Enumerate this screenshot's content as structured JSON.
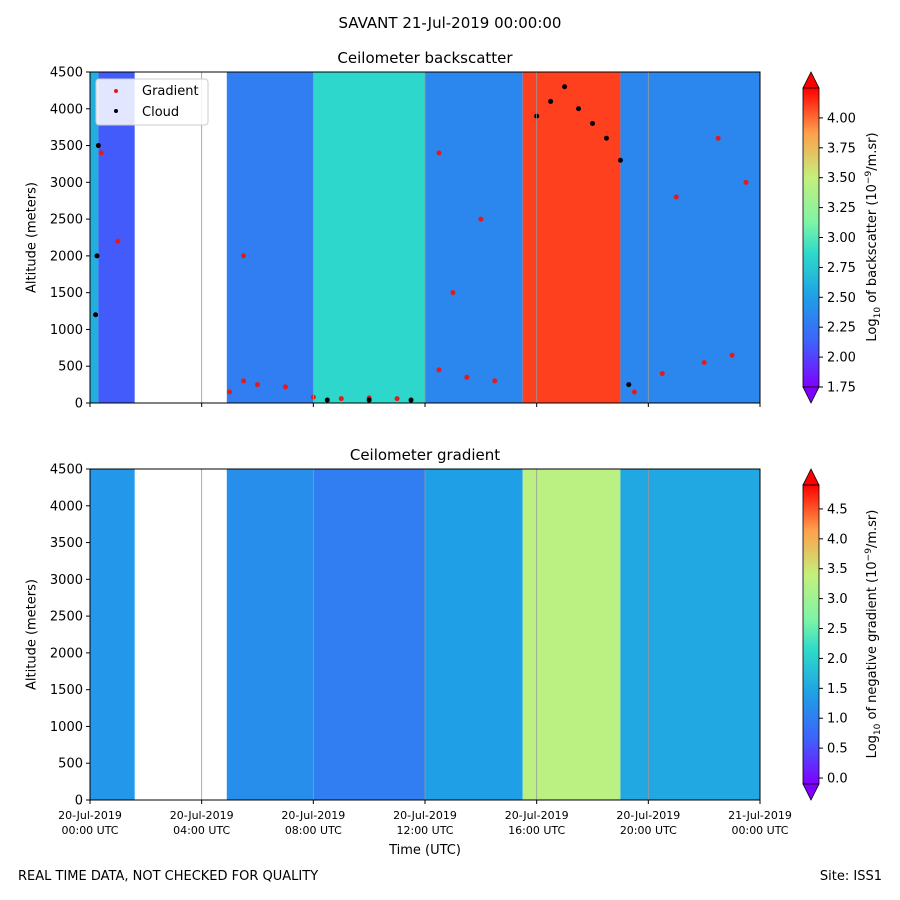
{
  "header": {
    "suptitle": "SAVANT 21-Jul-2019 00:00:00",
    "footer_left": "REAL TIME DATA, NOT CHECKED FOR QUALITY",
    "footer_right": "Site: ISS1"
  },
  "chart_data": [
    {
      "type": "heatmap",
      "title": "Ceilometer backscatter",
      "xlabel": "",
      "ylabel": "Altitude (meters)",
      "ylim": [
        0,
        4500
      ],
      "yticks": [
        0,
        500,
        1000,
        1500,
        2000,
        2500,
        3000,
        3500,
        4000,
        4500
      ],
      "ytick_labels": [
        "0",
        "500",
        "1000",
        "1500",
        "2000",
        "2500",
        "3000",
        "3500",
        "4000",
        "4500"
      ],
      "xlim_hours": [
        0,
        24
      ],
      "xticks_hours": [
        0,
        4,
        8,
        12,
        16,
        20,
        24
      ],
      "legend": [
        "Gradient",
        "Cloud"
      ],
      "legend_colors": [
        "#e41a1c",
        "#000000"
      ],
      "legend_position": "top-left",
      "colorbar": {
        "label": "Log10 of backscatter (10^-9/m.sr)",
        "label_main": "Log",
        "label_sub": "10",
        "label_rest": " of backscatter (10",
        "label_exp": "−9",
        "label_end": "/m.sr)",
        "range": [
          1.75,
          4.25
        ],
        "ticks": [
          1.75,
          2.0,
          2.25,
          2.5,
          2.75,
          3.0,
          3.25,
          3.5,
          3.75,
          4.0
        ],
        "tick_labels": [
          "1.75",
          "2.00",
          "2.25",
          "2.50",
          "2.75",
          "3.00",
          "3.25",
          "3.50",
          "3.75",
          "4.00"
        ]
      },
      "data_gaps_hours": [
        [
          1.6,
          4.9
        ],
        [
          15.9,
          15.95
        ]
      ],
      "bands": [
        {
          "start_hour": 0.0,
          "end_hour": 0.3,
          "value": 2.6
        },
        {
          "start_hour": 0.3,
          "end_hour": 1.6,
          "value": 2.1
        },
        {
          "start_hour": 4.9,
          "end_hour": 8.0,
          "value": 2.3
        },
        {
          "start_hour": 8.0,
          "end_hour": 12.0,
          "value": 2.85
        },
        {
          "start_hour": 12.0,
          "end_hour": 15.5,
          "value": 2.35
        },
        {
          "start_hour": 15.5,
          "end_hour": 19.0,
          "value": 4.1
        },
        {
          "start_hour": 19.0,
          "end_hour": 24.0,
          "value": 2.35
        }
      ],
      "gradient_points": [
        {
          "x": 5.0,
          "y": 150
        },
        {
          "x": 5.5,
          "y": 300
        },
        {
          "x": 6.0,
          "y": 250
        },
        {
          "x": 7.0,
          "y": 220
        },
        {
          "x": 8.0,
          "y": 80
        },
        {
          "x": 9.0,
          "y": 60
        },
        {
          "x": 10.0,
          "y": 70
        },
        {
          "x": 11.0,
          "y": 60
        },
        {
          "x": 12.5,
          "y": 450
        },
        {
          "x": 13.5,
          "y": 350
        },
        {
          "x": 14.5,
          "y": 300
        },
        {
          "x": 19.5,
          "y": 150
        },
        {
          "x": 20.5,
          "y": 400
        },
        {
          "x": 22.0,
          "y": 550
        },
        {
          "x": 23.0,
          "y": 650
        },
        {
          "x": 5.5,
          "y": 2000
        },
        {
          "x": 0.4,
          "y": 3400
        },
        {
          "x": 1.0,
          "y": 2200
        },
        {
          "x": 12.5,
          "y": 3400
        },
        {
          "x": 14.0,
          "y": 2500
        },
        {
          "x": 22.5,
          "y": 3600
        },
        {
          "x": 23.5,
          "y": 3000
        },
        {
          "x": 13.0,
          "y": 1500
        },
        {
          "x": 21.0,
          "y": 2800
        }
      ],
      "cloud_points": [
        {
          "x": 0.3,
          "y": 3500
        },
        {
          "x": 0.25,
          "y": 2000
        },
        {
          "x": 0.2,
          "y": 1200
        },
        {
          "x": 16.0,
          "y": 3900
        },
        {
          "x": 16.5,
          "y": 4100
        },
        {
          "x": 17.0,
          "y": 4300
        },
        {
          "x": 17.5,
          "y": 4000
        },
        {
          "x": 18.0,
          "y": 3800
        },
        {
          "x": 18.5,
          "y": 3600
        },
        {
          "x": 19.0,
          "y": 3300
        },
        {
          "x": 19.3,
          "y": 250
        },
        {
          "x": 8.5,
          "y": 40
        },
        {
          "x": 10.0,
          "y": 40
        },
        {
          "x": 11.5,
          "y": 40
        }
      ]
    },
    {
      "type": "heatmap",
      "title": "Ceilometer gradient",
      "xlabel": "Time (UTC)",
      "ylabel": "Altitude (meters)",
      "ylim": [
        0,
        4500
      ],
      "yticks": [
        0,
        500,
        1000,
        1500,
        2000,
        2500,
        3000,
        3500,
        4000,
        4500
      ],
      "ytick_labels": [
        "0",
        "500",
        "1000",
        "1500",
        "2000",
        "2500",
        "3000",
        "3500",
        "4000",
        "4500"
      ],
      "xlim_hours": [
        0,
        24
      ],
      "xticks_hours": [
        0,
        4,
        8,
        12,
        16,
        20,
        24
      ],
      "xtick_labels": [
        [
          "20-Jul-2019",
          "00:00 UTC"
        ],
        [
          "20-Jul-2019",
          "04:00 UTC"
        ],
        [
          "20-Jul-2019",
          "08:00 UTC"
        ],
        [
          "20-Jul-2019",
          "12:00 UTC"
        ],
        [
          "20-Jul-2019",
          "16:00 UTC"
        ],
        [
          "20-Jul-2019",
          "20:00 UTC"
        ],
        [
          "21-Jul-2019",
          "00:00 UTC"
        ]
      ],
      "colorbar": {
        "label": "Log10 of negative gradient (10^-9/m.sr)",
        "label_main": "Log",
        "label_sub": "10",
        "label_rest": " of negative gradient (10",
        "label_exp": "−9",
        "label_end": "/m.sr)",
        "range": [
          -0.1,
          4.9
        ],
        "ticks": [
          0.0,
          0.5,
          1.0,
          1.5,
          2.0,
          2.5,
          3.0,
          3.5,
          4.0,
          4.5
        ],
        "tick_labels": [
          "0.0",
          "0.5",
          "1.0",
          "1.5",
          "2.0",
          "2.5",
          "3.0",
          "3.5",
          "4.0",
          "4.5"
        ]
      },
      "data_gaps_hours": [
        [
          1.6,
          4.9
        ]
      ],
      "bands": [
        {
          "start_hour": 0.0,
          "end_hour": 1.6,
          "value": 1.3
        },
        {
          "start_hour": 4.9,
          "end_hour": 8.0,
          "value": 1.2
        },
        {
          "start_hour": 8.0,
          "end_hour": 12.0,
          "value": 1.0
        },
        {
          "start_hour": 12.0,
          "end_hour": 15.5,
          "value": 1.4
        },
        {
          "start_hour": 15.5,
          "end_hour": 19.0,
          "value": 3.3
        },
        {
          "start_hour": 19.0,
          "end_hour": 24.0,
          "value": 1.5
        }
      ]
    }
  ]
}
